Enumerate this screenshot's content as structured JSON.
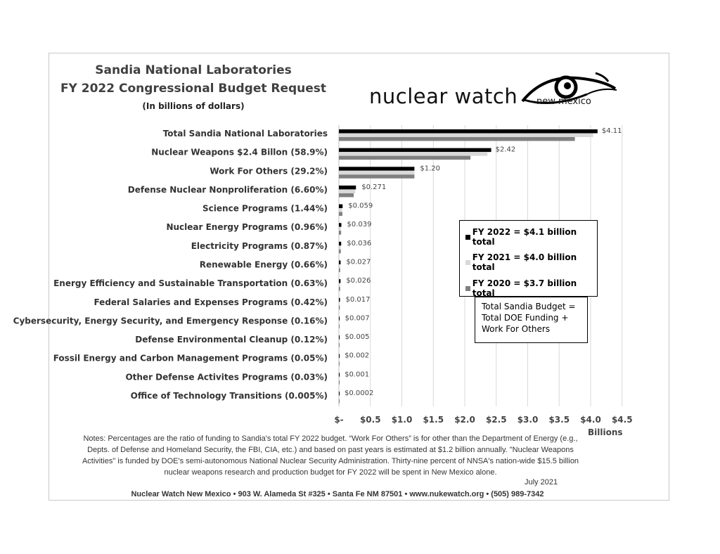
{
  "header": {
    "title_line1": "Sandia National Laboratories",
    "title_line2": "FY 2022 Congressional Budget Request",
    "subtitle": "(In billions of dollars)"
  },
  "logo": {
    "text": "nuclear watch",
    "subtext": "new mexico",
    "icon": "eye-icon"
  },
  "legend": {
    "items": [
      {
        "label": "FY 2022 = $4.1 billion total",
        "color": "#000000"
      },
      {
        "label": "FY 2021 = $4.0 billion total",
        "color": "#d9d9d9"
      },
      {
        "label": "FY 2020 = $3.7 billion total",
        "color": "#808080"
      }
    ]
  },
  "textbox": {
    "lines": [
      "Total Sandia Budget =",
      "Total DOE Funding +",
      "Work For Others"
    ]
  },
  "chart_data": {
    "type": "bar",
    "orientation": "horizontal",
    "xlabel": "Billions",
    "xlim": [
      0,
      4.5
    ],
    "xticks": [
      "$-",
      "$0.5",
      "$1.0",
      "$1.5",
      "$2.0",
      "$2.5",
      "$3.0",
      "$3.5",
      "$4.0",
      "$4.5"
    ],
    "grid": "vertical",
    "legend_placement": "right-middle",
    "categories": [
      "Total Sandia National Laboratories",
      "Nuclear Weapons $2.4 Billon (58.9%)",
      "Work For Others (29.2%)",
      "Defense Nuclear Nonproliferation (6.60%)",
      "Science Programs (1.44%)",
      "Nuclear Energy Programs (0.96%)",
      "Electricity Programs (0.87%)",
      "Renewable Energy (0.66%)",
      "Energy Efficiency and Sustainable Transportation (0.63%)",
      "Federal Salaries and Expenses Programs (0.42%)",
      "Cybersecurity, Energy Security, and Emergency Response  (0.16%)",
      "Defense Environmental Cleanup (0.12%)",
      "Fossil Energy and Carbon Management Programs (0.05%)",
      "Other Defense Activites Programs (0.03%)",
      "Office of Technology Transitions (0.005%)"
    ],
    "series": [
      {
        "name": "FY 2022 = $4.1 billion total",
        "color": "#000000",
        "values": [
          4.11,
          2.42,
          1.2,
          0.271,
          0.059,
          0.039,
          0.036,
          0.027,
          0.026,
          0.017,
          0.007,
          0.005,
          0.002,
          0.001,
          0.0002
        ]
      },
      {
        "name": "FY 2021 = $4.0 billion total",
        "color": "#d9d9d9",
        "values": [
          4.04,
          2.36,
          1.2,
          0.26,
          0.05,
          0.03,
          0.03,
          0.02,
          0.02,
          0.015,
          0.006,
          0.005,
          0.002,
          0.001,
          0.0002
        ]
      },
      {
        "name": "FY 2020 = $3.7 billion total",
        "color": "#808080",
        "values": [
          3.75,
          2.09,
          1.2,
          0.235,
          0.055,
          0.035,
          0.03,
          0.02,
          0.02,
          0.015,
          0.005,
          0.004,
          0.002,
          0.001,
          0.0002
        ]
      }
    ],
    "data_labels": [
      "$4.11",
      "$2.42",
      "$1.20",
      "$0.271",
      "$0.059",
      "$0.039",
      "$0.036",
      "$0.027",
      "$0.026",
      "$0.017",
      "$0.007",
      "$0.005",
      "$0.002",
      "$0.001",
      "$0.0002"
    ]
  },
  "notes": "Notes: Percentages are the ratio of funding to Sandia's total FY 2022 budget. “Work For Others” is for other than the Department of Energy (e.g., Depts. of Defense and Homeland Security, the FBI, CIA, etc.) and based on past years is estimated at $1.2 billion annually. \"Nuclear Weapons Activities\" is funded by DOE's semi-autonomous National Nuclear Security Administration.  Thirty-nine percent of NNSA's nation-wide $15.5 billion nuclear weapons research and production budget for FY 2022 will be spent in New Mexico alone.",
  "date": "July 2021",
  "footer": "Nuclear Watch New Mexico • 903 W. Alameda St #325 • Santa Fe NM 87501 • www.nukewatch.org • (505) 989-7342"
}
